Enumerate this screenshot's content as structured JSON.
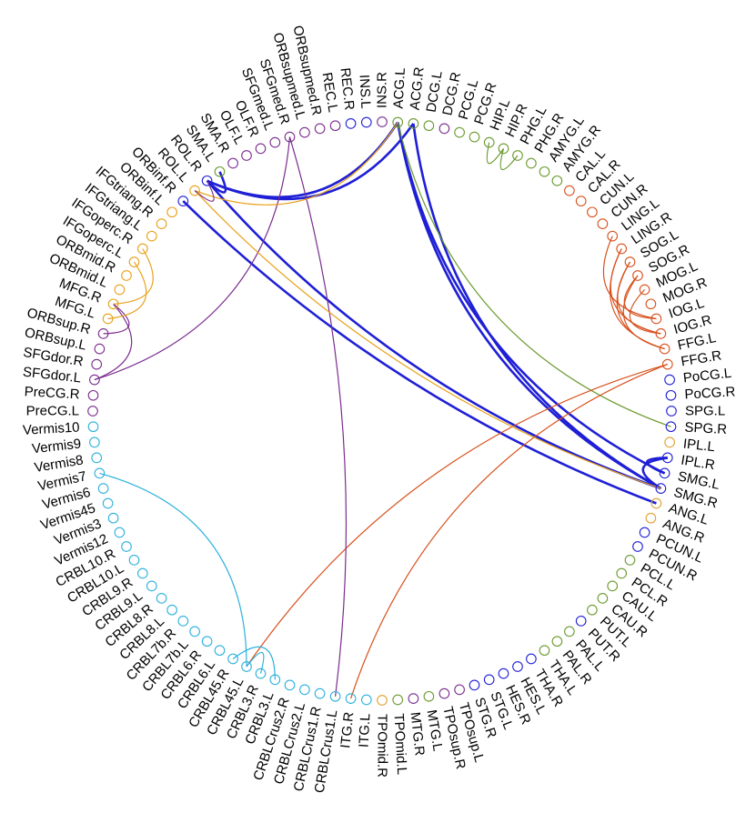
{
  "colors": {
    "frontal": "#7b2d8e",
    "orbital": "#e8a018",
    "limbic": "#6a9a2e",
    "basal": "#1f1fd6",
    "occipital": "#d8501c",
    "cerebellar": "#2cb0dc",
    "temporal": "#e0a030"
  },
  "regions": [
    {
      "label": "PreCG.L",
      "color": "frontal"
    },
    {
      "label": "PreCG.R",
      "color": "frontal"
    },
    {
      "label": "SFGdor.L",
      "color": "frontal"
    },
    {
      "label": "SFGdor.R",
      "color": "frontal"
    },
    {
      "label": "ORBsup.L",
      "color": "frontal"
    },
    {
      "label": "ORBsup.R",
      "color": "frontal"
    },
    {
      "label": "MFG.L",
      "color": "orbital"
    },
    {
      "label": "MFG.R",
      "color": "orbital"
    },
    {
      "label": "ORBmid.L",
      "color": "orbital"
    },
    {
      "label": "ORBmid.R",
      "color": "orbital"
    },
    {
      "label": "IFGoperc.L",
      "color": "orbital"
    },
    {
      "label": "IFGoperc.R",
      "color": "orbital"
    },
    {
      "label": "IFGtriang.L",
      "color": "orbital"
    },
    {
      "label": "IFGtriang.R",
      "color": "orbital"
    },
    {
      "label": "ORBinf.L",
      "color": "orbital"
    },
    {
      "label": "ORBinf.R",
      "color": "basal"
    },
    {
      "label": "ROL.L",
      "color": "orbital"
    },
    {
      "label": "ROL.R",
      "color": "basal"
    },
    {
      "label": "SMA.L",
      "color": "limbic"
    },
    {
      "label": "SMA.R",
      "color": "frontal"
    },
    {
      "label": "OLF.L",
      "color": "frontal"
    },
    {
      "label": "OLF.R",
      "color": "frontal"
    },
    {
      "label": "SFGmed.L",
      "color": "frontal"
    },
    {
      "label": "SFGmed.R",
      "color": "frontal"
    },
    {
      "label": "ORBsupmed.L",
      "color": "frontal"
    },
    {
      "label": "ORBsupmed.R",
      "color": "frontal"
    },
    {
      "label": "REC.L",
      "color": "frontal"
    },
    {
      "label": "REC.R",
      "color": "basal"
    },
    {
      "label": "INS.L",
      "color": "basal"
    },
    {
      "label": "INS.R",
      "color": "frontal"
    },
    {
      "label": "ACG.L",
      "color": "limbic"
    },
    {
      "label": "ACG.R",
      "color": "limbic"
    },
    {
      "label": "DCG.L",
      "color": "limbic"
    },
    {
      "label": "DCG.R",
      "color": "frontal"
    },
    {
      "label": "PCG.L",
      "color": "limbic"
    },
    {
      "label": "PCG.R",
      "color": "limbic"
    },
    {
      "label": "HIP.L",
      "color": "limbic"
    },
    {
      "label": "HIP.R",
      "color": "limbic"
    },
    {
      "label": "PHG.L",
      "color": "limbic"
    },
    {
      "label": "PHG.R",
      "color": "limbic"
    },
    {
      "label": "AMYG.L",
      "color": "limbic"
    },
    {
      "label": "AMYG.R",
      "color": "limbic"
    },
    {
      "label": "CAL.L",
      "color": "occipital"
    },
    {
      "label": "CAL.R",
      "color": "occipital"
    },
    {
      "label": "CUN.L",
      "color": "occipital"
    },
    {
      "label": "CUN.R",
      "color": "occipital"
    },
    {
      "label": "LING.L",
      "color": "occipital"
    },
    {
      "label": "LING.R",
      "color": "occipital"
    },
    {
      "label": "SOG.L",
      "color": "occipital"
    },
    {
      "label": "SOG.R",
      "color": "occipital"
    },
    {
      "label": "MOG.L",
      "color": "occipital"
    },
    {
      "label": "MOG.R",
      "color": "occipital"
    },
    {
      "label": "IOG.L",
      "color": "occipital"
    },
    {
      "label": "IOG.R",
      "color": "occipital"
    },
    {
      "label": "FFG.L",
      "color": "occipital"
    },
    {
      "label": "FFG.R",
      "color": "occipital"
    },
    {
      "label": "PoCG.L",
      "color": "basal"
    },
    {
      "label": "PoCG.R",
      "color": "basal"
    },
    {
      "label": "SPG.L",
      "color": "basal"
    },
    {
      "label": "SPG.R",
      "color": "basal"
    },
    {
      "label": "IPL.L",
      "color": "temporal"
    },
    {
      "label": "IPL.R",
      "color": "basal"
    },
    {
      "label": "SMG.L",
      "color": "basal"
    },
    {
      "label": "SMG.R",
      "color": "basal"
    },
    {
      "label": "ANG.L",
      "color": "temporal"
    },
    {
      "label": "ANG.R",
      "color": "temporal"
    },
    {
      "label": "PCUN.L",
      "color": "basal"
    },
    {
      "label": "PCUN.R",
      "color": "basal"
    },
    {
      "label": "PCL.L",
      "color": "limbic"
    },
    {
      "label": "PCL.R",
      "color": "limbic"
    },
    {
      "label": "CAU.L",
      "color": "limbic"
    },
    {
      "label": "CAU.R",
      "color": "limbic"
    },
    {
      "label": "PUT.L",
      "color": "limbic"
    },
    {
      "label": "PUT.R",
      "color": "basal"
    },
    {
      "label": "PAL.L",
      "color": "limbic"
    },
    {
      "label": "PAL.R",
      "color": "limbic"
    },
    {
      "label": "THA.L",
      "color": "limbic"
    },
    {
      "label": "THA.R",
      "color": "basal"
    },
    {
      "label": "HES.L",
      "color": "basal"
    },
    {
      "label": "HES.R",
      "color": "basal"
    },
    {
      "label": "STG.L",
      "color": "basal"
    },
    {
      "label": "STG.R",
      "color": "basal"
    },
    {
      "label": "TPOsup.L",
      "color": "frontal"
    },
    {
      "label": "TPOsup.R",
      "color": "frontal"
    },
    {
      "label": "MTG.L",
      "color": "limbic"
    },
    {
      "label": "MTG.R",
      "color": "frontal"
    },
    {
      "label": "TPOmid.L",
      "color": "limbic"
    },
    {
      "label": "TPOmid.R",
      "color": "temporal"
    },
    {
      "label": "ITG.L",
      "color": "cerebellar"
    },
    {
      "label": "ITG.R",
      "color": "cerebellar"
    },
    {
      "label": "CRBLCrus1.L",
      "color": "cerebellar"
    },
    {
      "label": "CRBLCrus1.R",
      "color": "cerebellar"
    },
    {
      "label": "CRBLCrus2.L",
      "color": "cerebellar"
    },
    {
      "label": "CRBLCrus2.R",
      "color": "cerebellar"
    },
    {
      "label": "CRBL3.L",
      "color": "cerebellar"
    },
    {
      "label": "CRBL3.R",
      "color": "cerebellar"
    },
    {
      "label": "CRBL45.L",
      "color": "cerebellar"
    },
    {
      "label": "CRBL45.R",
      "color": "cerebellar"
    },
    {
      "label": "CRBL6.L",
      "color": "cerebellar"
    },
    {
      "label": "CRBL6.R",
      "color": "cerebellar"
    },
    {
      "label": "CRBL7b.L",
      "color": "cerebellar"
    },
    {
      "label": "CRBL7b.R",
      "color": "cerebellar"
    },
    {
      "label": "CRBL8.L",
      "color": "cerebellar"
    },
    {
      "label": "CRBL8.R",
      "color": "cerebellar"
    },
    {
      "label": "CRBL9.L",
      "color": "cerebellar"
    },
    {
      "label": "CRBL9.R",
      "color": "cerebellar"
    },
    {
      "label": "CRBL10.L",
      "color": "cerebellar"
    },
    {
      "label": "CRBL10.R",
      "color": "cerebellar"
    },
    {
      "label": "Vermis12",
      "color": "cerebellar"
    },
    {
      "label": "Vermis3",
      "color": "cerebellar"
    },
    {
      "label": "Vermis45",
      "color": "cerebellar"
    },
    {
      "label": "Vermis6",
      "color": "cerebellar"
    },
    {
      "label": "Vermis7",
      "color": "cerebellar"
    },
    {
      "label": "Vermis8",
      "color": "cerebellar"
    },
    {
      "label": "Vermis9",
      "color": "cerebellar"
    },
    {
      "label": "Vermis10",
      "color": "cerebellar"
    }
  ],
  "connections": [
    {
      "from": "ORBinf.R",
      "to": "ANG.L",
      "color": "basal",
      "weight": "strong"
    },
    {
      "from": "ROL.R",
      "to": "SMG.R",
      "color": "basal",
      "weight": "strong"
    },
    {
      "from": "ROL.R",
      "to": "ACG.L",
      "color": "basal",
      "weight": "strong"
    },
    {
      "from": "ROL.R",
      "to": "ACG.R",
      "color": "basal",
      "weight": "strong"
    },
    {
      "from": "ROL.R",
      "to": "SMA.L",
      "color": "basal",
      "weight": "strong"
    },
    {
      "from": "ACG.R",
      "to": "SMG.R",
      "color": "basal",
      "weight": "strong"
    },
    {
      "from": "ACG.L",
      "to": "SMG.R",
      "color": "basal",
      "weight": "strong"
    },
    {
      "from": "ACG.L",
      "to": "SMG.L",
      "color": "basal",
      "weight": "strong"
    },
    {
      "from": "SMG.R",
      "to": "IPL.R",
      "color": "basal",
      "weight": "strong"
    },
    {
      "from": "SMG.L",
      "to": "IPL.R",
      "color": "basal",
      "weight": "strong"
    },
    {
      "from": "ACG.L",
      "to": "SPG.R",
      "color": "limbic",
      "weight": "normal"
    },
    {
      "from": "ITG.R",
      "to": "FFG.R",
      "color": "occipital",
      "weight": "normal"
    },
    {
      "from": "CRBL45.L",
      "to": "FFG.R",
      "color": "occipital",
      "weight": "normal"
    },
    {
      "from": "CRBLCrus1.L",
      "to": "SFGmed.R",
      "color": "frontal",
      "weight": "normal"
    },
    {
      "from": "SFGdor.L",
      "to": "SFGmed.R",
      "color": "frontal",
      "weight": "normal"
    },
    {
      "from": "SFGdor.L",
      "to": "MFG.R",
      "color": "frontal",
      "weight": "normal"
    },
    {
      "from": "ORBsup.R",
      "to": "MFG.R",
      "color": "frontal",
      "weight": "normal"
    },
    {
      "from": "MFG.R",
      "to": "IFGoperc.R",
      "color": "orbital",
      "weight": "normal"
    },
    {
      "from": "MFG.L",
      "to": "IFGoperc.L",
      "color": "orbital",
      "weight": "normal"
    },
    {
      "from": "ROL.L",
      "to": "SMG.R",
      "color": "orbital",
      "weight": "normal"
    },
    {
      "from": "ROL.L",
      "to": "ACG.L",
      "color": "orbital",
      "weight": "normal"
    },
    {
      "from": "ROL.R",
      "to": "ROL.L",
      "color": "frontal",
      "weight": "normal"
    },
    {
      "from": "CRBL45.L",
      "to": "Vermis7",
      "color": "cerebellar",
      "weight": "normal"
    },
    {
      "from": "CRBL45.R",
      "to": "CRBL3.L",
      "color": "cerebellar",
      "weight": "normal"
    },
    {
      "from": "CRBL45.L",
      "to": "CRBL3.R",
      "color": "cerebellar",
      "weight": "normal"
    },
    {
      "from": "HIP.R",
      "to": "PHG.L",
      "color": "limbic",
      "weight": "normal"
    },
    {
      "from": "HIP.L",
      "to": "HIP.R",
      "color": "limbic",
      "weight": "normal"
    },
    {
      "from": "LING.R",
      "to": "IOG.R",
      "color": "occipital",
      "weight": "normal"
    },
    {
      "from": "LING.R",
      "to": "FFG.L",
      "color": "occipital",
      "weight": "normal"
    },
    {
      "from": "SOG.L",
      "to": "IOG.R",
      "color": "occipital",
      "weight": "normal"
    },
    {
      "from": "SOG.L",
      "to": "FFG.L",
      "color": "occipital",
      "weight": "normal"
    },
    {
      "from": "SOG.R",
      "to": "FFG.L",
      "color": "occipital",
      "weight": "normal"
    },
    {
      "from": "LING.L",
      "to": "IOG.L",
      "color": "occipital",
      "weight": "normal"
    },
    {
      "from": "MOG.L",
      "to": "IOG.R",
      "color": "occipital",
      "weight": "normal"
    },
    {
      "from": "SOG.R",
      "to": "IOG.L",
      "color": "occipital",
      "weight": "normal"
    }
  ]
}
